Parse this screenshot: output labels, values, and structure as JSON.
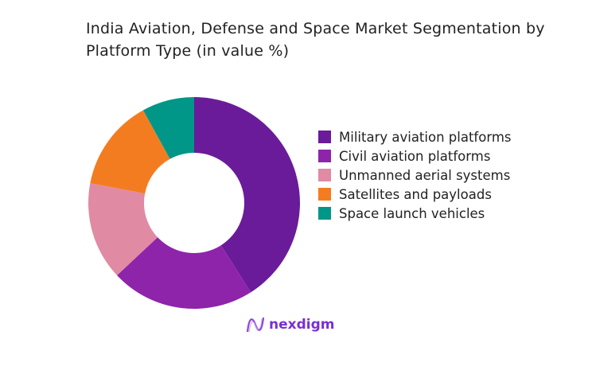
{
  "chart_data": {
    "type": "pie",
    "donut": true,
    "title": "India Aviation, Defense and Space Market Segmentation by Platform Type (in value %)",
    "categories": [
      "Military aviation platforms",
      "Civil aviation platforms",
      "Unmanned aerial systems",
      "Satellites and payloads",
      "Space launch vehicles"
    ],
    "values": [
      41,
      22,
      15,
      14,
      8
    ],
    "colors": [
      "#6a1b9a",
      "#8e24aa",
      "#e08aa4",
      "#f47c20",
      "#009688"
    ],
    "legend_position": "right"
  },
  "logo": {
    "text": "nexdigm"
  }
}
